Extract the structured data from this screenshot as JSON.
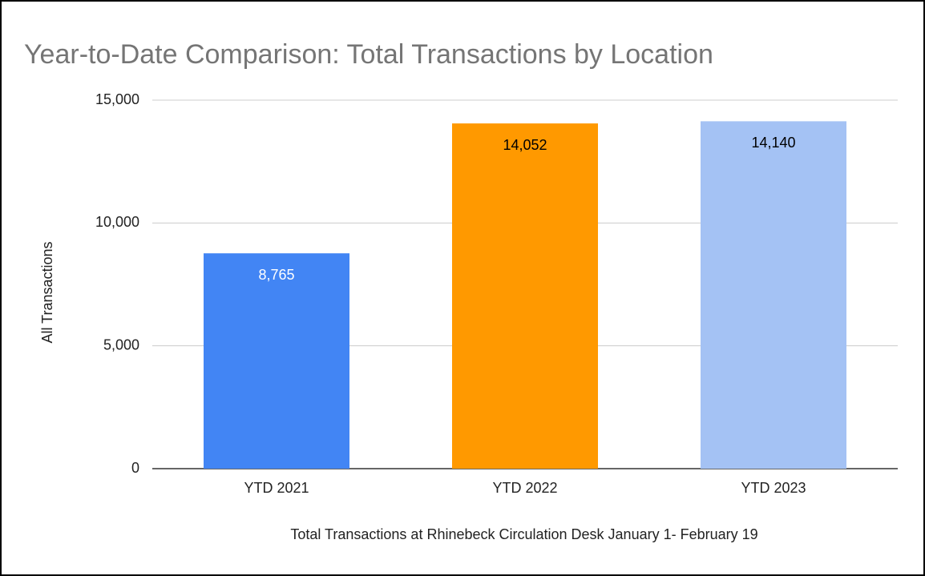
{
  "chart_data": {
    "type": "bar",
    "title": "Year-to-Date Comparison: Total Transactions by Location",
    "x_label": "Total Transactions at Rhinebeck Circulation Desk January 1- February 19",
    "y_label": "All Transactions",
    "categories": [
      "YTD 2021",
      "YTD 2022",
      "YTD 2023"
    ],
    "values": [
      8765,
      14052,
      14140
    ],
    "value_labels": [
      "8,765",
      "14,052",
      "14,140"
    ],
    "colors": [
      "#4285f4",
      "#ff9900",
      "#a4c2f4"
    ],
    "label_colors": [
      "#ffffff",
      "#000000",
      "#000000"
    ],
    "ylim": [
      0,
      15000
    ],
    "yticks": [
      0,
      {
        "value": 5000,
        "label": "5,000"
      },
      {
        "value": 10000,
        "label": "10,000"
      },
      {
        "value": 15000,
        "label": "15,000"
      }
    ],
    "grid": true
  }
}
